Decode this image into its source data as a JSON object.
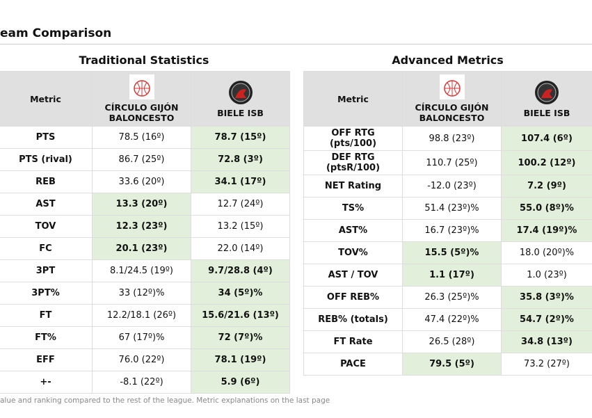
{
  "title": "eam Comparison",
  "footnote": "alue and ranking compared to the rest of the league. Metric explanations on the last page",
  "tables": [
    {
      "title": "Traditional Statistics",
      "columns": [
        "Metric",
        "CÍRCULO GIJÓN BALONCESTO",
        "BIELE ISB"
      ],
      "rows": [
        {
          "cells": [
            "PTS",
            "78.5 (16º)",
            "78.7 (15º)"
          ],
          "best": 2
        },
        {
          "cells": [
            "PTS (rival)",
            "86.7 (25º)",
            "72.8 (3º)"
          ],
          "best": 2
        },
        {
          "cells": [
            "REB",
            "33.6 (20º)",
            "34.1 (17º)"
          ],
          "best": 2
        },
        {
          "cells": [
            "AST",
            "13.3 (20º)",
            "12.7 (24º)"
          ],
          "best": 1
        },
        {
          "cells": [
            "TOV",
            "12.3 (23º)",
            "13.2 (15º)"
          ],
          "best": 1
        },
        {
          "cells": [
            "FC",
            "20.1 (23º)",
            "22.0 (14º)"
          ],
          "best": 1
        },
        {
          "cells": [
            "3PT",
            "8.1/24.5 (19º)",
            "9.7/28.8 (4º)"
          ],
          "best": 2
        },
        {
          "cells": [
            "3PT%",
            "33 (12º)%",
            "34 (5º)%"
          ],
          "best": 2
        },
        {
          "cells": [
            "FT",
            "12.2/18.1 (26º)",
            "15.6/21.6 (13º)"
          ],
          "best": 2
        },
        {
          "cells": [
            "FT%",
            "67 (17º)%",
            "72 (7º)%"
          ],
          "best": 2
        },
        {
          "cells": [
            "EFF",
            "76.0 (22º)",
            "78.1 (19º)"
          ],
          "best": 2
        },
        {
          "cells": [
            "+-",
            "-8.1 (22º)",
            "5.9 (6º)"
          ],
          "best": 2
        }
      ]
    },
    {
      "title": "Advanced Metrics",
      "columns": [
        "Metric",
        "CÍRCULO GIJÓN BALONCESTO",
        "BIELE ISB"
      ],
      "rows": [
        {
          "cells": [
            "OFF RTG (pts/100)",
            "98.8 (23º)",
            "107.4 (6º)"
          ],
          "best": 2
        },
        {
          "cells": [
            "DEF RTG (ptsR/100)",
            "110.7 (25º)",
            "100.2 (12º)"
          ],
          "best": 2
        },
        {
          "cells": [
            "NET Rating",
            "-12.0 (23º)",
            "7.2 (9º)"
          ],
          "best": 2
        },
        {
          "cells": [
            "TS%",
            "51.4 (23º)%",
            "55.0 (8º)%"
          ],
          "best": 2
        },
        {
          "cells": [
            "AST%",
            "16.7 (23º)%",
            "17.4 (19º)%"
          ],
          "best": 2
        },
        {
          "cells": [
            "TOV%",
            "15.5 (5º)%",
            "18.0 (20º)%"
          ],
          "best": 1
        },
        {
          "cells": [
            "AST / TOV",
            "1.1 (17º)",
            "1.0 (23º)"
          ],
          "best": 1
        },
        {
          "cells": [
            "OFF REB%",
            "26.3 (25º)%",
            "35.8 (3º)%"
          ],
          "best": 2
        },
        {
          "cells": [
            "REB% (totals)",
            "47.4 (22º)%",
            "54.7 (2º)%"
          ],
          "best": 2
        },
        {
          "cells": [
            "FT Rate",
            "26.5 (28º)",
            "34.8 (13º)"
          ],
          "best": 2
        },
        {
          "cells": [
            "PACE",
            "79.5 (5º)",
            "73.2 (27º)"
          ],
          "best": 1
        }
      ]
    }
  ]
}
